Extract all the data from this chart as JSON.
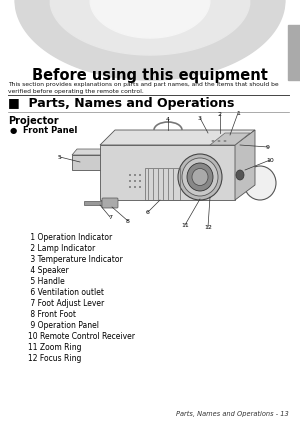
{
  "title": "Before using this equipment",
  "subtitle": "This section provides explanations on parts and part names, and the items that should be\nverified before operating the remote control.",
  "section_title": "■  Parts, Names and Operations",
  "subsection": "Projector",
  "bullet_label": "●  Front Panel",
  "parts_list": [
    " 1 Operation Indicator",
    " 2 Lamp Indicator",
    " 3 Temperature Indicator",
    " 4 Speaker",
    " 5 Handle",
    " 6 Ventilation outlet",
    " 7 Foot Adjust Lever",
    " 8 Front Foot",
    " 9 Operation Panel",
    "10 Remote Control Receiver",
    "11 Zoom Ring",
    "12 Focus Ring"
  ],
  "footer": "Parts, Names and Operations - 13",
  "bg_color": "#ffffff",
  "tab_color": "#999999",
  "text_color": "#000000"
}
